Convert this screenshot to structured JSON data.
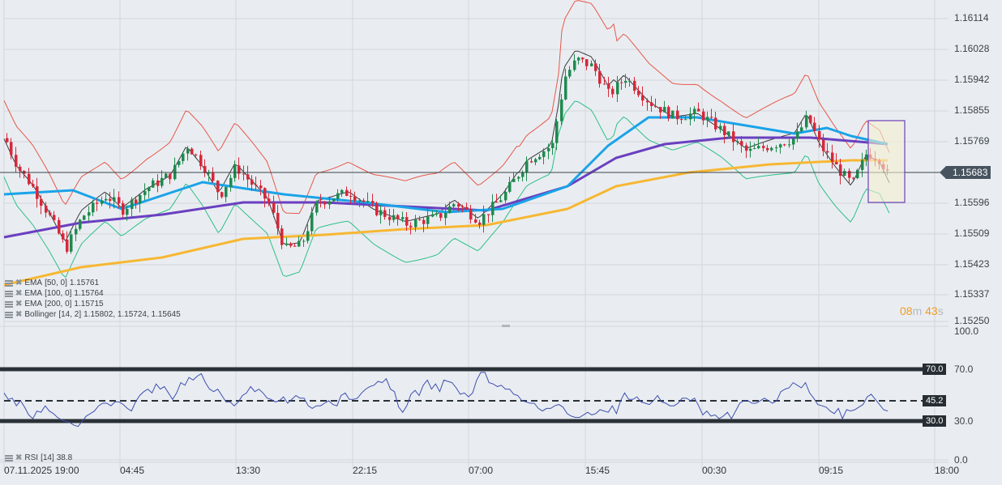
{
  "chart_data": {
    "type": "candlestick",
    "title": "",
    "instrument_price_axis": {
      "labels": [
        "1.16114",
        "1.16028",
        "1.15942",
        "1.15855",
        "1.15769",
        "1.15683",
        "1.15596",
        "1.15509",
        "1.15423",
        "1.15337",
        "1.15250"
      ],
      "min": 1.1525,
      "max": 1.16114
    },
    "current_price": "1.15683",
    "time_axis": [
      "07.11.2025  19:00",
      "04:45",
      "13:30",
      "22:15",
      "07:00",
      "15:45",
      "00:30",
      "09:15",
      "18:00"
    ],
    "indicators": [
      {
        "name": "EMA",
        "params": "[50,  0]",
        "value": "1.15761",
        "color": "#1aa3e8"
      },
      {
        "name": "EMA",
        "params": "[100,  0]",
        "value": "1.15764",
        "color": "#6a3fc0"
      },
      {
        "name": "EMA",
        "params": "[200,  0]",
        "value": "1.15715",
        "color": "#f7b733"
      },
      {
        "name": "Bollinger",
        "params": "[14,  2]",
        "value": "1.15802,  1.15724,  1.15645",
        "colors": {
          "upper": "#e8574a",
          "middle": "#2f2f2f",
          "lower": "#2fbf87"
        }
      }
    ],
    "rsi": {
      "name": "RSI",
      "params": "[14]",
      "value": "38.8",
      "levels": {
        "upper": "70.0",
        "middle": "45.2",
        "lower": "30.0"
      },
      "axis": [
        "100.0",
        "70.0",
        "30.0",
        "0.0"
      ],
      "color": "#3f4fb0",
      "series": [
        52,
        47,
        48,
        42,
        46,
        41,
        35,
        32,
        38,
        37,
        42,
        38,
        36,
        33,
        31,
        30,
        29,
        27,
        26,
        30,
        34,
        36,
        38,
        42,
        44,
        44,
        42,
        45,
        45,
        43,
        40,
        38,
        45,
        50,
        53,
        55,
        52,
        59,
        55,
        57,
        52,
        47,
        52,
        60,
        58,
        64,
        62,
        65,
        67,
        60,
        55,
        53,
        55,
        50,
        45,
        45,
        42,
        45,
        50,
        52,
        57,
        53,
        55,
        52,
        48,
        47,
        45,
        46,
        49,
        44,
        47,
        50,
        48,
        48,
        42,
        40,
        42,
        42,
        44,
        46,
        43,
        42,
        50,
        52,
        47,
        47,
        48,
        52,
        55,
        57,
        58,
        61,
        60,
        63,
        55,
        53,
        41,
        37,
        42,
        51,
        54,
        50,
        58,
        62,
        55,
        59,
        53,
        62,
        61,
        60,
        56,
        51,
        52,
        49,
        52,
        62,
        68,
        68,
        60,
        59,
        57,
        58,
        55,
        55,
        51,
        50,
        46,
        45,
        44,
        44,
        40,
        38,
        40,
        40,
        42,
        43,
        41,
        36,
        34,
        33,
        33,
        35,
        37,
        35,
        36,
        39,
        38,
        37,
        42,
        36,
        46,
        52,
        47,
        47,
        49,
        45,
        44,
        43,
        46,
        50,
        45,
        44,
        42,
        42,
        44,
        48,
        48,
        46,
        48,
        42,
        35,
        38,
        34,
        35,
        32,
        34,
        37,
        32,
        38,
        44,
        46,
        46,
        44,
        44,
        46,
        48,
        46,
        44,
        46,
        53,
        55,
        56,
        60,
        58,
        56,
        60,
        52,
        48,
        43,
        42,
        41,
        38,
        36,
        40,
        32,
        39,
        38,
        39,
        41,
        43,
        49,
        51,
        47,
        43,
        39,
        38
      ]
    }
  },
  "countdown": {
    "minutes": "08",
    "minutes_unit": "m",
    "seconds": "43",
    "seconds_unit": "s"
  }
}
